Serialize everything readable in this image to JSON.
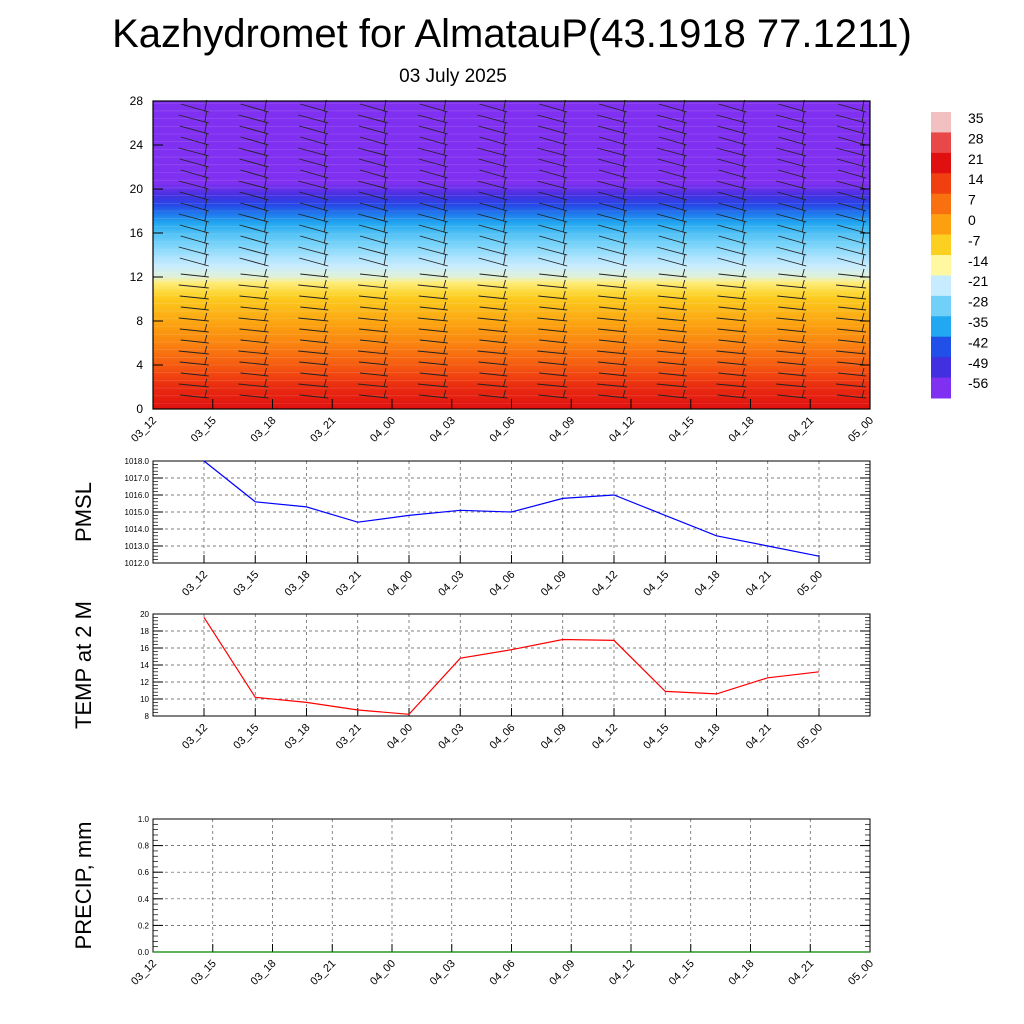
{
  "header": {
    "title": "Kazhydromet for AlmatauP(43.1918 77.1211)",
    "date": "03 July 2025"
  },
  "colors": {
    "pmsl": "#0000ff",
    "temp": "#ff0000",
    "precip": "#008000",
    "grid": "#555555"
  },
  "time_labels": [
    "03_12",
    "03_15",
    "03_18",
    "03_21",
    "04_00",
    "04_03",
    "04_06",
    "04_09",
    "04_12",
    "04_15",
    "04_18",
    "04_21",
    "05_00"
  ],
  "chart_data": [
    {
      "type": "heatmap",
      "name": "vertical-profile",
      "x": [
        "03_12",
        "03_15",
        "03_18",
        "03_21",
        "04_00",
        "04_03",
        "04_06",
        "04_09",
        "04_12",
        "04_15",
        "04_18",
        "04_21",
        "05_00"
      ],
      "y_ticks": [
        0,
        4,
        8,
        12,
        16,
        20,
        24,
        28
      ],
      "ylim": [
        0,
        28
      ],
      "colorbar": {
        "labels": [
          "35",
          "28",
          "21",
          "14",
          "7",
          "0",
          "-7",
          "-14",
          "-21",
          "-28",
          "-35",
          "-42",
          "-49",
          "-56"
        ],
        "colors": [
          "#f2c0c0",
          "#e84848",
          "#e01010",
          "#f04010",
          "#f87010",
          "#fca010",
          "#fcd020",
          "#fff8a0",
          "#c8ecff",
          "#70d0f8",
          "#20a8f0",
          "#2050e8",
          "#4030e0",
          "#8030f0"
        ]
      },
      "temperature_profile": [
        {
          "level": 0,
          "value": 21
        },
        {
          "level": 2,
          "value": 17
        },
        {
          "level": 4,
          "value": 10
        },
        {
          "level": 6,
          "value": 4
        },
        {
          "level": 8,
          "value": -1
        },
        {
          "level": 10,
          "value": -6
        },
        {
          "level": 11.5,
          "value": -12
        },
        {
          "level": 12,
          "value": -18
        },
        {
          "level": 14,
          "value": -24
        },
        {
          "level": 16,
          "value": -31
        },
        {
          "level": 18,
          "value": -40
        },
        {
          "level": 19.5,
          "value": -50
        },
        {
          "level": 20.5,
          "value": -56
        },
        {
          "level": 22,
          "value": -58
        },
        {
          "level": 28,
          "value": -58
        }
      ]
    },
    {
      "type": "line",
      "name": "pmsl",
      "ylabel": "PMSL",
      "x": [
        "03_12",
        "03_15",
        "03_18",
        "03_21",
        "04_00",
        "04_03",
        "04_06",
        "04_09",
        "04_12",
        "04_15",
        "04_18",
        "04_21",
        "05_00"
      ],
      "values": [
        1018.0,
        1015.6,
        1015.3,
        1014.4,
        1014.8,
        1015.1,
        1015.0,
        1015.8,
        1016.0,
        1014.8,
        1013.6,
        1013.0,
        1012.4
      ],
      "ylim": [
        1012.0,
        1018.0
      ],
      "y_ticks": [
        "1012.0",
        "1013.0",
        "1014.0",
        "1015.0",
        "1016.0",
        "1017.0",
        "1018.0"
      ]
    },
    {
      "type": "line",
      "name": "temp",
      "ylabel": "TEMP at 2 M",
      "x": [
        "03_12",
        "03_15",
        "03_18",
        "03_21",
        "04_00",
        "04_03",
        "04_06",
        "04_09",
        "04_12",
        "04_15",
        "04_18",
        "04_21",
        "05_00"
      ],
      "values": [
        19.6,
        10.2,
        9.6,
        8.7,
        8.2,
        14.8,
        15.8,
        17.0,
        16.9,
        10.9,
        10.6,
        12.5,
        13.2
      ],
      "ylim": [
        8,
        20
      ],
      "y_ticks": [
        "8",
        "10",
        "12",
        "14",
        "16",
        "18",
        "20"
      ]
    },
    {
      "type": "line",
      "name": "precip",
      "ylabel": "PRECIP, mm",
      "x": [
        "03_12",
        "03_15",
        "03_18",
        "03_21",
        "04_00",
        "04_03",
        "04_06",
        "04_09",
        "04_12",
        "04_15",
        "04_18",
        "04_21",
        "05_00"
      ],
      "values": [
        0,
        0,
        0,
        0,
        0,
        0,
        0,
        0,
        0,
        0,
        0,
        0,
        0
      ],
      "ylim": [
        0.0,
        1.0
      ],
      "y_ticks": [
        "0.0",
        "0.2",
        "0.4",
        "0.6",
        "0.8",
        "1.0"
      ]
    }
  ]
}
